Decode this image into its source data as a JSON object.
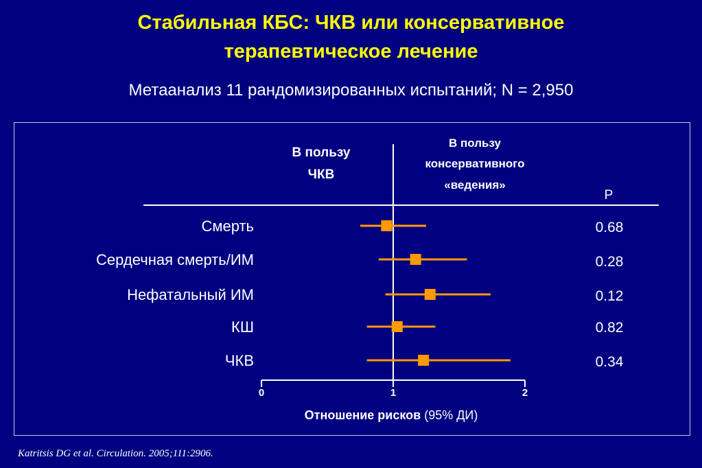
{
  "title_line1": "Стабильная КБС: ЧКВ или консервативное",
  "title_line2": "терапевтическое лечение",
  "subtitle": "Метаанализ 11 рандомизированных испытаний; N = 2,950",
  "citation": "Katritsis DG et al. Circulation. 2005;111:2906.",
  "favors_pci": [
    "В пользу",
    "ЧКВ"
  ],
  "favors_conservative": [
    "В пользу",
    "консервативного",
    "«ведения»"
  ],
  "p_header": "P",
  "xlabel_bold": "Отношение рисков",
  "xlabel_normal": " (95% ДИ)",
  "colors": {
    "background": "#000080",
    "title": "#ffff00",
    "marker": "#ff9900",
    "text": "#ffffff"
  },
  "chart_data": {
    "type": "forest",
    "xlim": [
      0,
      2
    ],
    "xticks": [
      0,
      1,
      2
    ],
    "reference_line": 1,
    "rows": [
      {
        "label": "Смерть",
        "hr": 0.95,
        "ci": [
          0.75,
          1.25
        ],
        "p": "0.68"
      },
      {
        "label": "Сердечная смерть/ИМ",
        "hr": 1.17,
        "ci": [
          0.89,
          1.56
        ],
        "p": "0.28"
      },
      {
        "label": "Нефатальный ИМ",
        "hr": 1.28,
        "ci": [
          0.94,
          1.74
        ],
        "p": "0.12"
      },
      {
        "label": "КШ",
        "hr": 1.03,
        "ci": [
          0.8,
          1.32
        ],
        "p": "0.82"
      },
      {
        "label": "ЧКВ",
        "hr": 1.23,
        "ci": [
          0.8,
          1.89
        ],
        "p": "0.34"
      }
    ]
  }
}
